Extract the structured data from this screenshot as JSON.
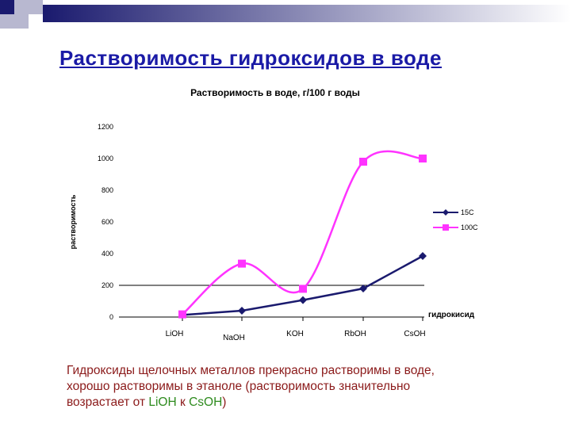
{
  "slide": {
    "title": "Растворимость гидроксидов в воде",
    "text_line1": "Гидроксиды щелочных металлов прекрасно растворимы в воде,",
    "text_line2": "хорошо растворимы в этаноле (растворимость значительно",
    "text_line3_prefix": "возрастает от",
    "text_from": "LiOH",
    "text_mid": "к",
    "text_to": "CsOH",
    "text_suffix": ")",
    "colors": {
      "title": "#1a1aa6",
      "text": "#8b1a1a",
      "formula": "#2e8b1e"
    }
  },
  "chart_data": {
    "type": "line",
    "title": "Растворимость в воде, г/100 г воды",
    "xlabel": "гидрокисид",
    "ylabel": "растворимость",
    "categories": [
      "LiOH",
      "NaOH",
      "KOH",
      "RbOH",
      "CsOH"
    ],
    "ylim": [
      0,
      1200
    ],
    "yticks": [
      "0",
      "200",
      "400",
      "600",
      "800",
      "1000",
      "1200"
    ],
    "legend_position": "right",
    "series": [
      {
        "name": "15C",
        "values": [
          13,
          40,
          107,
          180,
          385
        ],
        "color": "#1a1a6e",
        "marker": "diamond",
        "smooth": false
      },
      {
        "name": "100C",
        "values": [
          17,
          337,
          178,
          980,
          1000
        ],
        "color": "#ff33ff",
        "marker": "square",
        "smooth": true
      }
    ]
  }
}
